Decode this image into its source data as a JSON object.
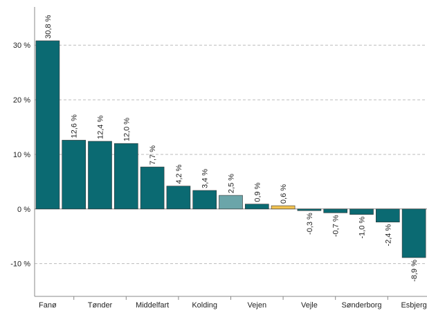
{
  "chart_data": {
    "type": "bar",
    "categories": [
      "Fanø",
      null,
      "Tønder",
      null,
      "Middelfart",
      null,
      "Kolding",
      null,
      "Vejen",
      null,
      "Vejle",
      null,
      "Sønderborg",
      null,
      "Esbjerg"
    ],
    "values": [
      30.8,
      12.6,
      12.4,
      12.0,
      7.7,
      4.2,
      3.4,
      2.5,
      0.9,
      0.6,
      -0.3,
      -0.7,
      -1.0,
      -2.4,
      -8.9
    ],
    "value_labels": [
      "30,8 %",
      "12,6 %",
      "12,4 %",
      "12,0 %",
      "7,7 %",
      "4,2 %",
      "3,4 %",
      "2,5 %",
      "0,9 %",
      "0,6 %",
      "-0,3 %",
      "-0,7 %",
      "-1,0 %",
      "-2,4 %",
      "-8,9 %"
    ],
    "colors": [
      "#0b6a72",
      "#0b6a72",
      "#0b6a72",
      "#0b6a72",
      "#0b6a72",
      "#0b6a72",
      "#0b6a72",
      "#6ba5a9",
      "#0b6a72",
      "#f2c350",
      "#0b6a72",
      "#0b6a72",
      "#0b6a72",
      "#0b6a72",
      "#0b6a72"
    ],
    "ylim": [
      -16,
      37
    ],
    "yticks": [
      {
        "value": -10,
        "label": "-10 %"
      },
      {
        "value": 0,
        "label": "0 %"
      },
      {
        "value": 10,
        "label": "10 %"
      },
      {
        "value": 20,
        "label": "20 %"
      },
      {
        "value": 30,
        "label": "30 %"
      }
    ],
    "grid": true
  }
}
